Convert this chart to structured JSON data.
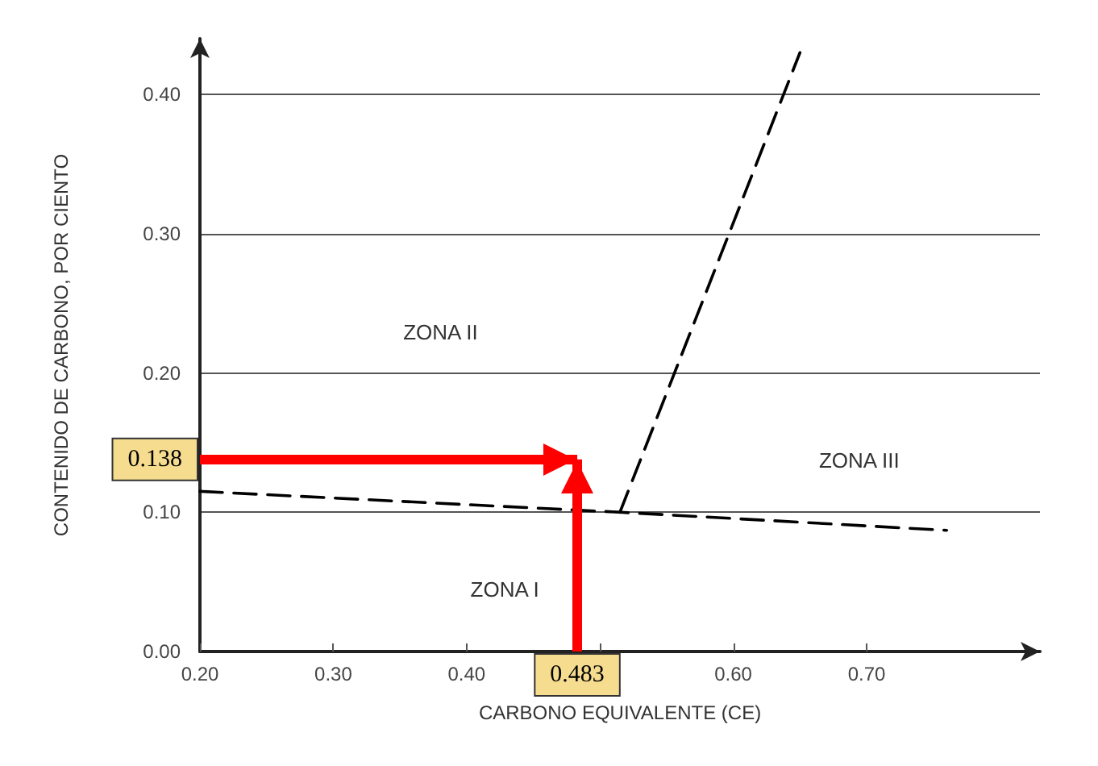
{
  "chart_data": {
    "type": "line",
    "xlabel": "CARBONO EQUIVALENTE (CE)",
    "ylabel": "CONTENIDO DE CARBONO, POR CIENTO",
    "series": [
      {
        "color": "#000000",
        "x": [
          0.2,
          0.515,
          0.76
        ],
        "values": [
          0.115,
          0.1,
          0.087
        ]
      },
      {
        "color": "#000000",
        "x": [
          0.515,
          0.65
        ],
        "values": [
          0.1,
          0.43
        ]
      }
    ],
    "xlim": [
      0.2,
      0.83
    ],
    "ylim": [
      0,
      0.44
    ],
    "xticks": [
      {
        "value": 0.2,
        "label": "0.20"
      },
      {
        "value": 0.3,
        "label": "0.30"
      },
      {
        "value": 0.4,
        "label": "0.40"
      },
      {
        "value": 0.5,
        "label": null
      },
      {
        "value": 0.6,
        "label": "0.60"
      },
      {
        "value": 0.7,
        "label": "0.70"
      }
    ],
    "yticks": [
      {
        "value": 0,
        "label": "0.00"
      },
      {
        "value": 0.1,
        "label": "0.10"
      },
      {
        "value": 0.2,
        "label": "0.20"
      },
      {
        "value": 0.3,
        "label": "0.30"
      },
      {
        "value": 0.4,
        "label": "0.40"
      }
    ],
    "grid": "y",
    "marker": "none",
    "line_style": "dashed",
    "ref_lines": [
      {
        "axis": "y",
        "value": 0.138,
        "label": "0.138",
        "color": "#ff0000"
      },
      {
        "axis": "x",
        "value": 0.483,
        "label": "0.483",
        "color": "#ff0000"
      }
    ],
    "annotations": [
      "ZONA II",
      "ZONA III",
      "ZONA I"
    ]
  }
}
